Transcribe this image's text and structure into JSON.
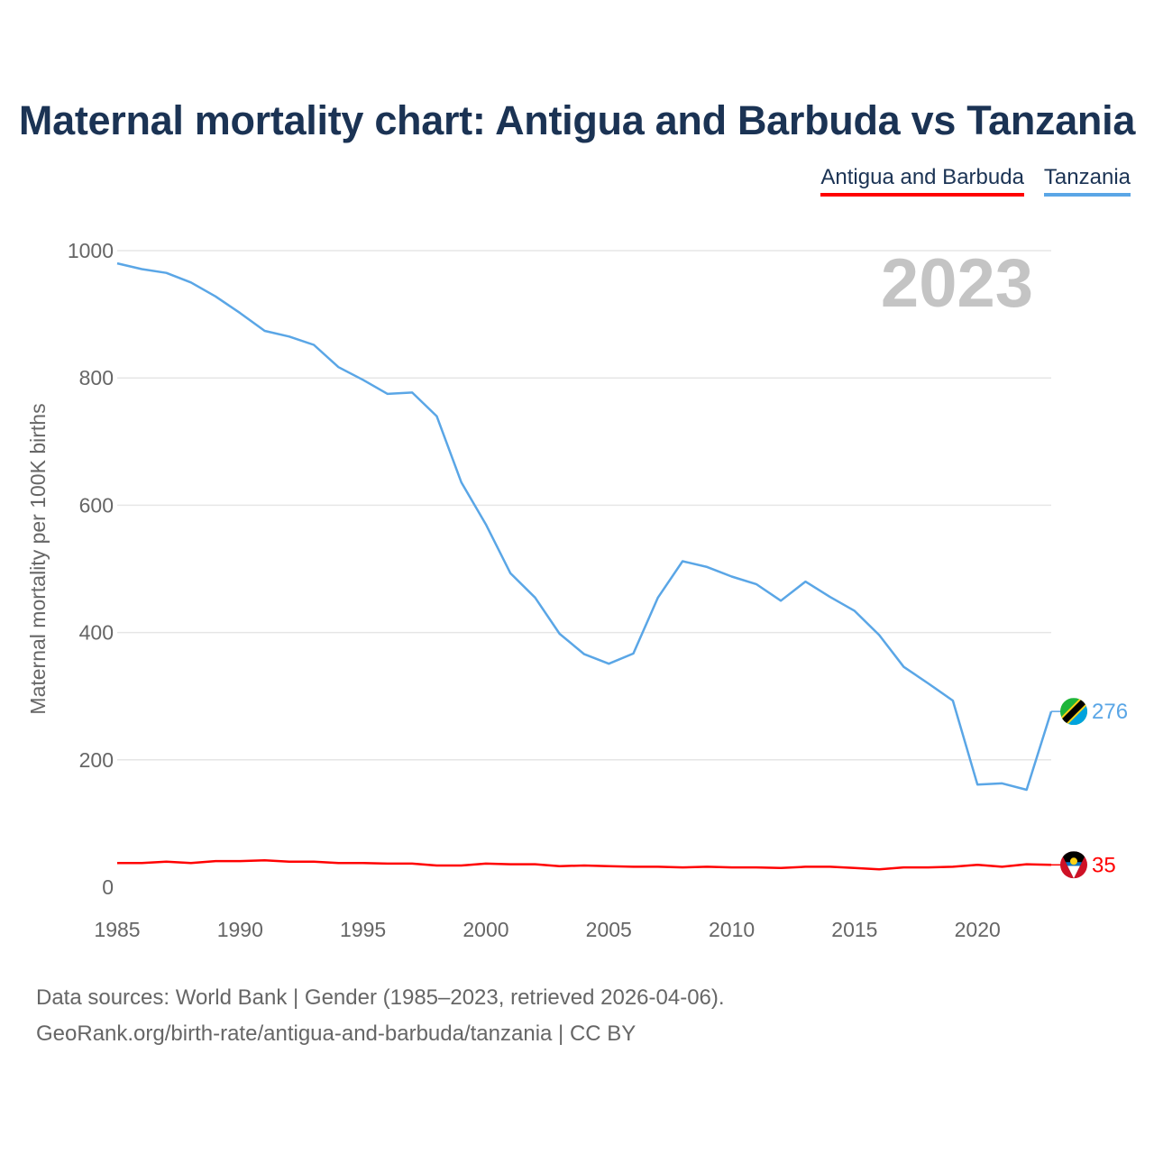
{
  "title": "Maternal mortality chart: Antigua and Barbuda vs Tanzania",
  "legend": [
    {
      "label": "Antigua and Barbuda",
      "color": "#ff0000"
    },
    {
      "label": "Tanzania",
      "color": "#5aa6e6"
    }
  ],
  "year_label": "2023",
  "footer": {
    "line1": "Data sources: World Bank | Gender (1985–2023, retrieved 2026-04-06).",
    "line2": "GeoRank.org/birth-rate/antigua-and-barbuda/tanzania | CC BY"
  },
  "chart_data": {
    "type": "line",
    "title": "Maternal mortality chart: Antigua and Barbuda vs Tanzania",
    "xlabel": "",
    "ylabel": "Maternal mortality per 100K births",
    "xlim": [
      1985,
      2023
    ],
    "ylim": [
      0,
      1000
    ],
    "x_ticks": [
      1985,
      1990,
      1995,
      2000,
      2005,
      2010,
      2015,
      2020
    ],
    "y_ticks": [
      0,
      200,
      400,
      600,
      800,
      1000
    ],
    "grid": true,
    "legend_position": "top-right",
    "x": [
      1985,
      1986,
      1987,
      1988,
      1989,
      1990,
      1991,
      1992,
      1993,
      1994,
      1995,
      1996,
      1997,
      1998,
      1999,
      2000,
      2001,
      2002,
      2003,
      2004,
      2005,
      2006,
      2007,
      2008,
      2009,
      2010,
      2011,
      2012,
      2013,
      2014,
      2015,
      2016,
      2017,
      2018,
      2019,
      2020,
      2021,
      2022,
      2023
    ],
    "series": [
      {
        "name": "Tanzania",
        "color": "#5aa6e6",
        "end_label": "276",
        "flag_icon": "tanzania-flag-icon",
        "values": [
          980,
          971,
          965,
          950,
          928,
          902,
          874,
          865,
          852,
          817,
          797,
          775,
          777,
          740,
          636,
          570,
          493,
          455,
          398,
          366,
          351,
          367,
          455,
          512,
          503,
          488,
          476,
          450,
          480,
          456,
          434,
          396,
          346,
          320,
          293,
          161,
          163,
          153,
          276
        ]
      },
      {
        "name": "Antigua and Barbuda",
        "color": "#ff0000",
        "end_label": "35",
        "flag_icon": "antigua-and-barbuda-flag-icon",
        "values": [
          38,
          38,
          40,
          38,
          41,
          41,
          42,
          40,
          40,
          38,
          38,
          37,
          37,
          34,
          34,
          37,
          36,
          36,
          33,
          34,
          33,
          32,
          32,
          31,
          32,
          31,
          31,
          30,
          32,
          32,
          30,
          28,
          31,
          31,
          32,
          35,
          32,
          36,
          35
        ]
      }
    ]
  }
}
